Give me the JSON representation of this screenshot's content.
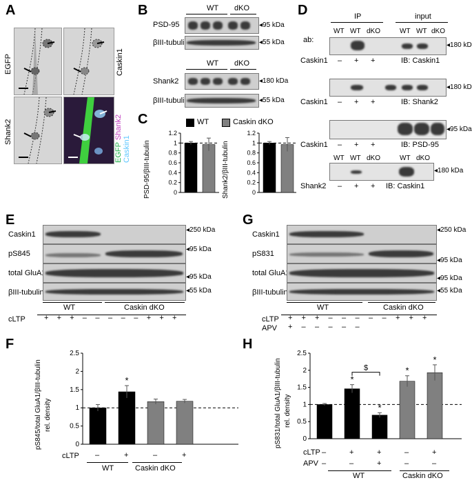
{
  "panels": {
    "A": {
      "letter": "A",
      "labels": [
        "EGFP",
        "Caskin1",
        "Shank2"
      ],
      "merge_labels": [
        {
          "text": "EGFP",
          "color": "#22b14c"
        },
        {
          "text": "Shank2",
          "color": "#c040c0"
        },
        {
          "text": "Caskin1",
          "color": "#60c8ff"
        }
      ]
    },
    "B": {
      "letter": "B",
      "group_wt": "WT",
      "group_dko": "dKO",
      "rows": [
        "PSD-95",
        "βIII-tubulin",
        "Shank2",
        "βIII-tubulin"
      ],
      "markers": [
        "◂95 kDa",
        "◂55 kDa",
        "◂180 kDa",
        "◂55 kDa"
      ]
    },
    "C": {
      "letter": "C",
      "legend": [
        {
          "name": "WT",
          "color": "#000000"
        },
        {
          "name": "Caskin dKO",
          "color": "#808080"
        }
      ],
      "left_ylabel": "PSD-95/βIII-tubulin",
      "right_ylabel": "Shank2/βIII-tubulin",
      "ticks": [
        "0",
        "0.2",
        "0.4",
        "0.6",
        "0.8",
        "1",
        "1.2"
      ]
    },
    "D": {
      "letter": "D",
      "ip": "IP",
      "input": "input",
      "ab": "ab:",
      "lanes": [
        "WT",
        "WT",
        "dKO",
        "WT",
        "WT",
        "dKO"
      ],
      "rows": [
        {
          "ip_label": "Caskin1",
          "signs": [
            "–",
            "+",
            "+"
          ],
          "ib": "IB: Caskin1",
          "marker": "◂180 kDa"
        },
        {
          "ip_label": "Caskin1",
          "signs": [
            "–",
            "+",
            "+"
          ],
          "ib": "IB: Shank2",
          "marker": "◂180 kDa"
        },
        {
          "ip_label": "Caskin1",
          "signs": [
            "–",
            "+",
            "+"
          ],
          "ib": "IB: PSD-95",
          "marker": "◂95 kDa"
        },
        {
          "ip_label": "Shank2",
          "signs": [
            "–",
            "+",
            "+"
          ],
          "ib": "IB: Caskin1",
          "marker": "◂180 kDa"
        }
      ],
      "last_lanes": [
        "WT",
        "WT",
        "dKO",
        "WT",
        "dKO"
      ]
    },
    "E": {
      "letter": "E",
      "rows": [
        "Caskin1",
        "pS845",
        "total GluA1",
        "βIII-tubulin"
      ],
      "markers": [
        "◂250 kDa",
        "◂95 kDa",
        "◂95 kDa",
        "◂55 kDa"
      ],
      "group_wt": "WT",
      "group_dko": "Caskin dKO",
      "cltp_label": "cLTP",
      "cltp_signs": [
        "+",
        "+",
        "+",
        "–",
        "–",
        "–",
        "–",
        "–",
        "+",
        "+",
        "+"
      ]
    },
    "G": {
      "letter": "G",
      "rows": [
        "Caskin1",
        "pS831",
        "total GluA1",
        "βIII-tubulin"
      ],
      "markers": [
        "◂250 kDa",
        "◂95 kDa",
        "◂95 kDa",
        "◂55 kDa"
      ],
      "group_wt": "WT",
      "group_dko": "Caskin dKO",
      "cltp_label": "cLTP",
      "apv_label": "APV",
      "cltp_signs": [
        "+",
        "+",
        "+",
        "–",
        "–",
        "–",
        "–",
        "–",
        "+",
        "+",
        "+"
      ],
      "apv_signs": [
        "+",
        "–",
        "–",
        "–",
        "–",
        "–"
      ]
    },
    "F": {
      "letter": "F",
      "ylabel": "pS845/total GluA1/βIII-tubulin",
      "ylabel2": "rel. density",
      "cltp_label": "cLTP",
      "signs": [
        "–",
        "+",
        "–",
        "+"
      ],
      "group_wt": "WT",
      "group_dko": "Caskin dKO",
      "star": "*"
    },
    "H": {
      "letter": "H",
      "ylabel": "pS831/total GluA1/βIII-tubulin",
      "ylabel2": "rel. density",
      "cltp_label": "cLTP",
      "apv_label": "APV",
      "cltp_signs": [
        "–",
        "+",
        "+",
        "–",
        "+"
      ],
      "apv_signs": [
        "–",
        "–",
        "+",
        "–",
        "–"
      ],
      "group_wt": "WT",
      "group_dko": "Caskin dKO",
      "star": "*",
      "dollar": "$"
    }
  },
  "chart_data": [
    {
      "type": "bar",
      "panel": "C-left",
      "categories": [
        "WT",
        "Caskin dKO"
      ],
      "values": [
        1.0,
        0.97
      ],
      "errors": [
        0.03,
        0.13
      ],
      "colors": [
        "#000000",
        "#808080"
      ],
      "ylabel": "PSD-95/βIII-tubulin",
      "ylim": [
        0,
        1.2
      ],
      "yticks": [
        0,
        0.2,
        0.4,
        0.6,
        0.8,
        1,
        1.2
      ],
      "reference_line": 1
    },
    {
      "type": "bar",
      "panel": "C-right",
      "categories": [
        "WT",
        "Caskin dKO"
      ],
      "values": [
        1.0,
        0.97
      ],
      "errors": [
        0.03,
        0.14
      ],
      "colors": [
        "#000000",
        "#808080"
      ],
      "ylabel": "Shank2/βIII-tubulin",
      "ylim": [
        0,
        1.2
      ],
      "yticks": [
        0,
        0.2,
        0.4,
        0.6,
        0.8,
        1,
        1.2
      ],
      "reference_line": 1
    },
    {
      "type": "bar",
      "panel": "F",
      "categories": [
        "WT cLTP –",
        "WT cLTP +",
        "Caskin dKO cLTP –",
        "Caskin dKO cLTP +"
      ],
      "values": [
        1.0,
        1.44,
        1.17,
        1.18
      ],
      "errors": [
        0.09,
        0.17,
        0.07,
        0.05
      ],
      "colors": [
        "#000000",
        "#000000",
        "#808080",
        "#808080"
      ],
      "significance": [
        "",
        "*",
        "",
        ""
      ],
      "ylabel": "pS845/total GluA1/βIII-tubulin rel. density",
      "ylim": [
        0,
        2.5
      ],
      "yticks": [
        0,
        0.5,
        1,
        1.5,
        2,
        2.5
      ],
      "reference_line": 1
    },
    {
      "type": "bar",
      "panel": "H",
      "categories": [
        "WT –/–",
        "WT cLTP +",
        "WT cLTP + APV +",
        "Caskin dKO –",
        "Caskin dKO cLTP +"
      ],
      "values": [
        1.0,
        1.46,
        0.69,
        1.68,
        1.93
      ],
      "errors": [
        0.03,
        0.12,
        0.07,
        0.16,
        0.23
      ],
      "colors": [
        "#000000",
        "#000000",
        "#000000",
        "#808080",
        "#808080"
      ],
      "significance": [
        "",
        "*",
        "*",
        "*",
        "*"
      ],
      "bracket": {
        "from": 1,
        "to": 2,
        "label": "$"
      },
      "ylabel": "pS831/total GluA1/βIII-tubulin rel. density",
      "ylim": [
        0,
        2.5
      ],
      "yticks": [
        0,
        0.5,
        1,
        1.5,
        2,
        2.5
      ],
      "reference_line": 1
    }
  ]
}
